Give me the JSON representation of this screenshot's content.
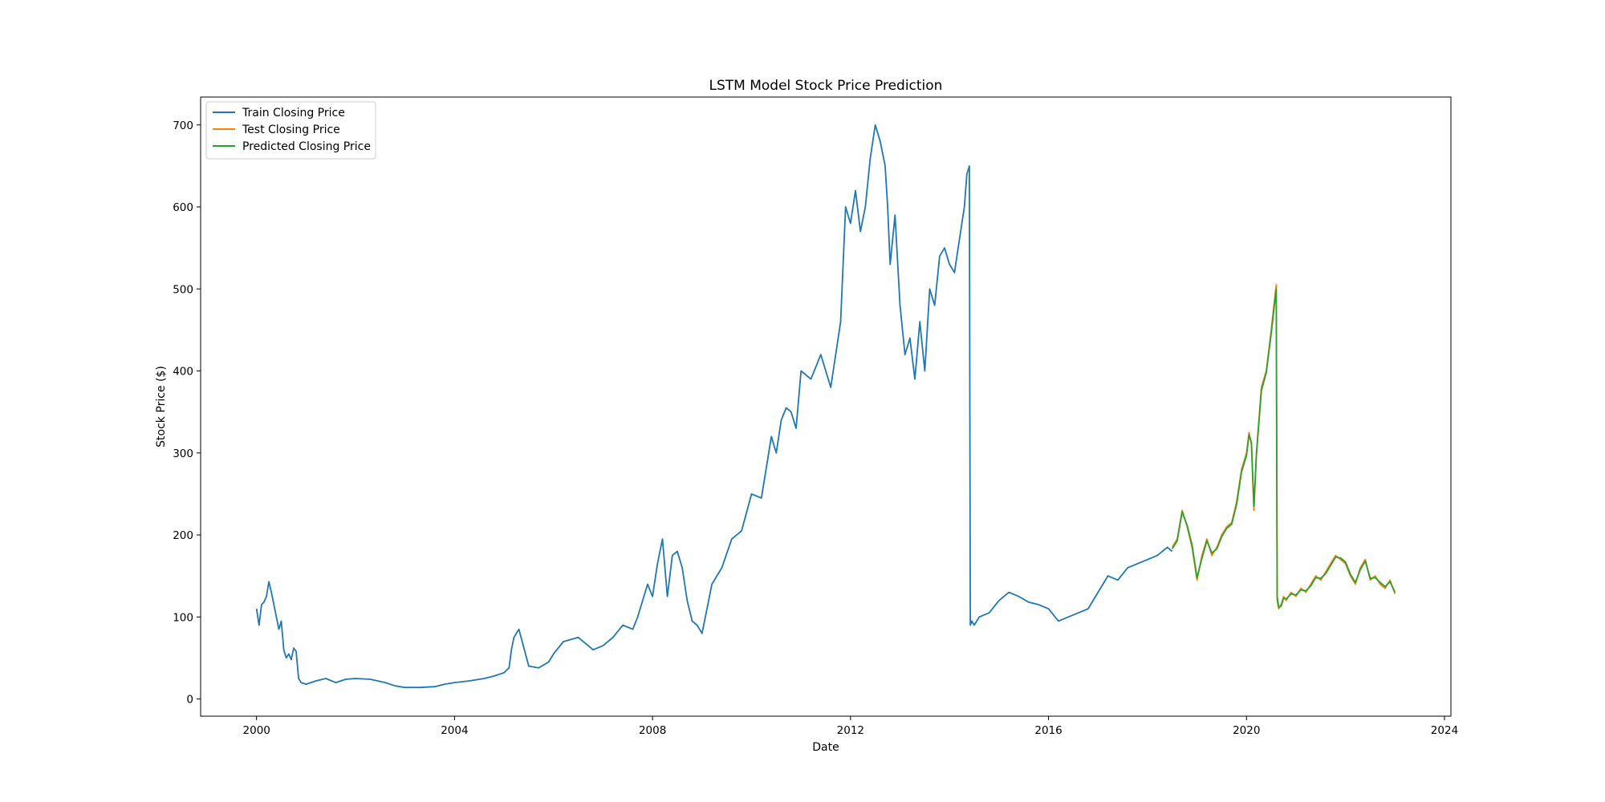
{
  "chart_data": {
    "type": "line",
    "title": "LSTM Model Stock Price Prediction",
    "xlabel": "Date",
    "ylabel": "Stock Price ($)",
    "xlim": [
      1998.87,
      2024.13
    ],
    "ylim": [
      -21,
      734
    ],
    "x_ticks": [
      "2000",
      "2004",
      "2008",
      "2012",
      "2016",
      "2020",
      "2024"
    ],
    "y_ticks": [
      "0",
      "100",
      "200",
      "300",
      "400",
      "500",
      "600",
      "700"
    ],
    "grid": false,
    "legend_position": "top-left",
    "series": [
      {
        "name": "Train Closing Price",
        "color": "#1f77b4",
        "x": [
          2000.0,
          2000.05,
          2000.1,
          2000.15,
          2000.2,
          2000.25,
          2000.3,
          2000.35,
          2000.4,
          2000.45,
          2000.5,
          2000.55,
          2000.6,
          2000.65,
          2000.7,
          2000.75,
          2000.8,
          2000.85,
          2000.9,
          2001.0,
          2001.2,
          2001.4,
          2001.6,
          2001.8,
          2002.0,
          2002.3,
          2002.6,
          2002.8,
          2003.0,
          2003.3,
          2003.6,
          2003.8,
          2004.0,
          2004.3,
          2004.6,
          2004.8,
          2005.0,
          2005.1,
          2005.15,
          2005.2,
          2005.3,
          2005.5,
          2005.7,
          2005.9,
          2006.0,
          2006.2,
          2006.5,
          2006.8,
          2007.0,
          2007.2,
          2007.4,
          2007.6,
          2007.7,
          2007.8,
          2007.9,
          2008.0,
          2008.1,
          2008.2,
          2008.3,
          2008.4,
          2008.5,
          2008.6,
          2008.7,
          2008.8,
          2008.9,
          2009.0,
          2009.1,
          2009.2,
          2009.4,
          2009.6,
          2009.8,
          2010.0,
          2010.2,
          2010.4,
          2010.5,
          2010.6,
          2010.7,
          2010.8,
          2010.9,
          2011.0,
          2011.2,
          2011.4,
          2011.6,
          2011.8,
          2011.9,
          2012.0,
          2012.1,
          2012.2,
          2012.3,
          2012.4,
          2012.5,
          2012.6,
          2012.7,
          2012.75,
          2012.8,
          2012.9,
          2013.0,
          2013.1,
          2013.2,
          2013.3,
          2013.4,
          2013.5,
          2013.6,
          2013.7,
          2013.8,
          2013.9,
          2014.0,
          2014.1,
          2014.2,
          2014.3,
          2014.35,
          2014.4,
          2014.42,
          2014.45,
          2014.5,
          2014.6,
          2014.8,
          2015.0,
          2015.2,
          2015.4,
          2015.6,
          2015.8,
          2016.0,
          2016.2,
          2016.4,
          2016.6,
          2016.8,
          2017.0,
          2017.2,
          2017.4,
          2017.6,
          2017.8,
          2018.0,
          2018.2,
          2018.4,
          2018.5
        ],
        "y": [
          110,
          90,
          115,
          118,
          125,
          143,
          130,
          115,
          100,
          85,
          95,
          60,
          50,
          55,
          48,
          62,
          58,
          25,
          20,
          18,
          22,
          25,
          20,
          24,
          25,
          24,
          20,
          16,
          14,
          14,
          15,
          18,
          20,
          22,
          25,
          28,
          32,
          38,
          60,
          75,
          85,
          40,
          38,
          45,
          55,
          70,
          75,
          60,
          65,
          75,
          90,
          85,
          100,
          120,
          140,
          125,
          165,
          195,
          125,
          175,
          180,
          160,
          120,
          95,
          90,
          80,
          110,
          140,
          160,
          195,
          205,
          250,
          245,
          320,
          300,
          340,
          355,
          350,
          330,
          400,
          390,
          420,
          380,
          460,
          600,
          580,
          620,
          570,
          600,
          660,
          700,
          680,
          650,
          600,
          530,
          590,
          480,
          420,
          440,
          390,
          460,
          400,
          500,
          480,
          540,
          550,
          530,
          520,
          560,
          600,
          640,
          650,
          90,
          95,
          90,
          100,
          105,
          120,
          130,
          125,
          118,
          115,
          110,
          95,
          100,
          105,
          110,
          130,
          150,
          145,
          160,
          165,
          170,
          175,
          185,
          180
        ]
      },
      {
        "name": "Test Closing Price",
        "color": "#ff7f0e",
        "x": [
          2018.5,
          2018.6,
          2018.7,
          2018.8,
          2018.9,
          2019.0,
          2019.1,
          2019.2,
          2019.3,
          2019.4,
          2019.5,
          2019.6,
          2019.7,
          2019.8,
          2019.9,
          2020.0,
          2020.05,
          2020.1,
          2020.15,
          2020.2,
          2020.3,
          2020.4,
          2020.5,
          2020.6,
          2020.62,
          2020.65,
          2020.7,
          2020.75,
          2020.8,
          2020.9,
          2021.0,
          2021.1,
          2021.2,
          2021.3,
          2021.4,
          2021.5,
          2021.6,
          2021.7,
          2021.8,
          2021.9,
          2022.0,
          2022.1,
          2022.2,
          2022.3,
          2022.4,
          2022.5,
          2022.6,
          2022.7,
          2022.8,
          2022.9,
          2023.0
        ],
        "y": [
          185,
          195,
          230,
          210,
          185,
          145,
          175,
          195,
          175,
          185,
          200,
          210,
          215,
          240,
          280,
          300,
          325,
          310,
          230,
          300,
          380,
          400,
          450,
          505,
          120,
          110,
          115,
          125,
          120,
          130,
          125,
          135,
          130,
          140,
          150,
          145,
          155,
          165,
          175,
          170,
          165,
          150,
          140,
          160,
          170,
          145,
          150,
          140,
          135,
          145,
          128
        ]
      },
      {
        "name": "Predicted Closing Price",
        "color": "#2ca02c",
        "x": [
          2018.5,
          2018.6,
          2018.7,
          2018.8,
          2018.9,
          2019.0,
          2019.1,
          2019.2,
          2019.3,
          2019.4,
          2019.5,
          2019.6,
          2019.7,
          2019.8,
          2019.9,
          2020.0,
          2020.05,
          2020.1,
          2020.15,
          2020.2,
          2020.3,
          2020.4,
          2020.5,
          2020.6,
          2020.62,
          2020.65,
          2020.7,
          2020.75,
          2020.8,
          2020.9,
          2021.0,
          2021.1,
          2021.2,
          2021.3,
          2021.4,
          2021.5,
          2021.6,
          2021.7,
          2021.8,
          2021.9,
          2022.0,
          2022.1,
          2022.2,
          2022.3,
          2022.4,
          2022.5,
          2022.6,
          2022.7,
          2022.8,
          2022.9,
          2023.0
        ],
        "y": [
          183,
          193,
          228,
          212,
          188,
          148,
          172,
          193,
          178,
          183,
          198,
          208,
          213,
          237,
          277,
          297,
          322,
          313,
          235,
          297,
          376,
          398,
          446,
          500,
          125,
          112,
          113,
          123,
          122,
          128,
          127,
          133,
          132,
          138,
          148,
          147,
          153,
          163,
          173,
          172,
          167,
          152,
          142,
          158,
          168,
          147,
          148,
          142,
          137,
          143,
          130
        ]
      }
    ]
  }
}
